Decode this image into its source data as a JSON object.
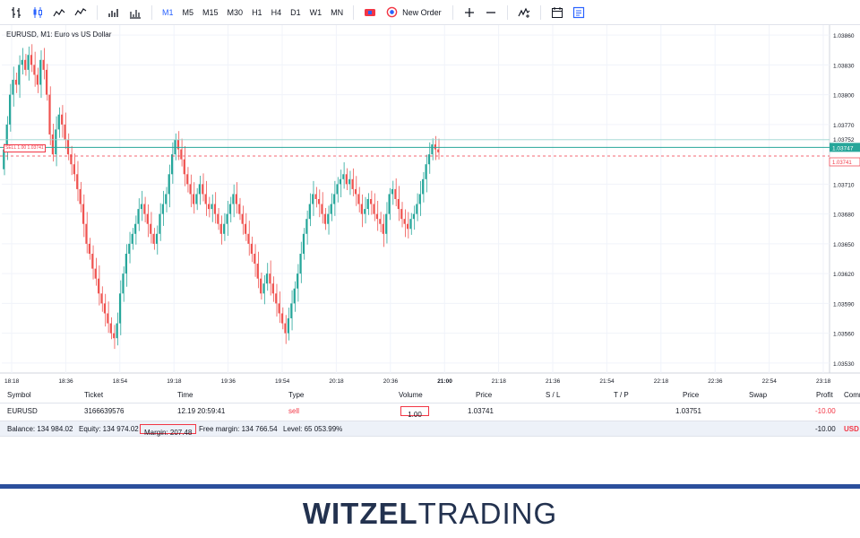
{
  "toolbar": {
    "timeframes": [
      "M1",
      "M5",
      "M15",
      "M30",
      "H1",
      "H4",
      "D1",
      "W1",
      "MN"
    ],
    "active_timeframe": "M1",
    "new_order_label": "New Order",
    "icons": [
      "bar-chart-icon",
      "candlestick-icon",
      "line-chart-icon",
      "area-chart-icon",
      "volume-bars-icon",
      "volume-bars-icon",
      "one-click-trading-icon",
      "new-order-icon",
      "zoom-in-icon",
      "zoom-out-icon",
      "indicators-icon",
      "calendar-icon",
      "save-icon"
    ]
  },
  "chart": {
    "title": "EURUSD, M1: Euro vs US Dollar",
    "sell_tag": "SELL 1.00 1.03741",
    "colors": {
      "up": "#26a69a",
      "down": "#ef5350",
      "grid": "#f0f3fa",
      "ask_line": "#26a69a",
      "bid_line": "#f23645"
    },
    "price_labels": [
      "1.03860",
      "1.03830",
      "1.03800",
      "1.03770",
      "1.03752",
      "1.03710",
      "1.03680",
      "1.03650",
      "1.03620",
      "1.03590",
      "1.03560",
      "1.03530"
    ],
    "current_price_label": "1.03747",
    "sell_price_label": "1.03741",
    "time_labels": [
      "18:18",
      "18:36",
      "18:54",
      "19:18",
      "19:36",
      "19:54",
      "20:18",
      "20:36",
      "21:00",
      "21:18",
      "21:36",
      "21:54",
      "22:18",
      "22:36",
      "22:54",
      "23:18"
    ],
    "active_time_label": "21:00"
  },
  "chart_data": {
    "type": "candlestick",
    "title": "EURUSD, M1: Euro vs US Dollar",
    "ylim": [
      1.0352,
      1.0387
    ],
    "y_ticks": [
      1.0386,
      1.0383,
      1.038,
      1.0377,
      1.0371,
      1.0368,
      1.0365,
      1.0362,
      1.0359,
      1.0356,
      1.0353
    ],
    "ask_price": 1.03752,
    "current_price": 1.03747,
    "sell_price": 1.03741,
    "close": [
      1.03745,
      1.0377,
      1.038,
      1.03815,
      1.0381,
      1.0383,
      1.03835,
      1.03825,
      1.0384,
      1.0383,
      1.0382,
      1.0381,
      1.03835,
      1.03825,
      1.038,
      1.0376,
      1.0374,
      1.03765,
      1.0378,
      1.0377,
      1.03755,
      1.0374,
      1.0373,
      1.0372,
      1.03705,
      1.0369,
      1.0367,
      1.0365,
      1.0364,
      1.03625,
      1.03615,
      1.036,
      1.0359,
      1.0358,
      1.0357,
      1.0356,
      1.03555,
      1.0357,
      1.036,
      1.0362,
      1.0364,
      1.0365,
      1.0366,
      1.0367,
      1.03685,
      1.0369,
      1.0368,
      1.0367,
      1.0366,
      1.0365,
      1.0366,
      1.0368,
      1.0369,
      1.037,
      1.0372,
      1.0374,
      1.03755,
      1.03745,
      1.03735,
      1.0372,
      1.0371,
      1.037,
      1.0369,
      1.037,
      1.0371,
      1.037,
      1.0369,
      1.03685,
      1.0369,
      1.0368,
      1.0367,
      1.0366,
      1.0367,
      1.0368,
      1.0369,
      1.037,
      1.0369,
      1.0368,
      1.0367,
      1.0366,
      1.0365,
      1.0364,
      1.0363,
      1.03615,
      1.036,
      1.0361,
      1.0362,
      1.0361,
      1.036,
      1.0359,
      1.0358,
      1.0357,
      1.0356,
      1.03575,
      1.0359,
      1.03605,
      1.0362,
      1.0364,
      1.0366,
      1.03675,
      1.0369,
      1.037,
      1.03695,
      1.0369,
      1.0368,
      1.0367,
      1.0368,
      1.0369,
      1.037,
      1.0371,
      1.03715,
      1.0372,
      1.0371,
      1.03715,
      1.03705,
      1.037,
      1.0369,
      1.0368,
      1.03685,
      1.03695,
      1.0369,
      1.0368,
      1.03675,
      1.0367,
      1.0366,
      1.0368,
      1.037,
      1.03705,
      1.03695,
      1.03685,
      1.03675,
      1.0367,
      1.03665,
      1.03675,
      1.0368,
      1.0369,
      1.037,
      1.03715,
      1.0373,
      1.0374,
      1.0375,
      1.03745,
      1.03742
    ]
  },
  "positions": {
    "headers": [
      "Symbol",
      "Ticket",
      "Time",
      "Type",
      "Volume",
      "Price",
      "S / L",
      "T / P",
      "Price",
      "Swap",
      "Profit",
      "Comment"
    ],
    "row": {
      "symbol": "EURUSD",
      "ticket": "3166639576",
      "time": "12.19 20:59:41",
      "type": "sell",
      "volume": "1.00",
      "price": "1.03741",
      "current_price": "1.03751",
      "profit": "-10.00"
    },
    "balance_bar": {
      "balance": "Balance: 134 984.02",
      "equity": "Equity: 134 974.02",
      "margin": "Margin: 207.48",
      "free_margin": "Free margin: 134 766.54",
      "level": "Level: 65 053.99%",
      "profit": "-10.00",
      "currency": "USD"
    }
  },
  "brand": {
    "bold": "WITZEL",
    "light": "TRADING",
    "color": "#23324f",
    "accent": "#2b4f9c"
  }
}
